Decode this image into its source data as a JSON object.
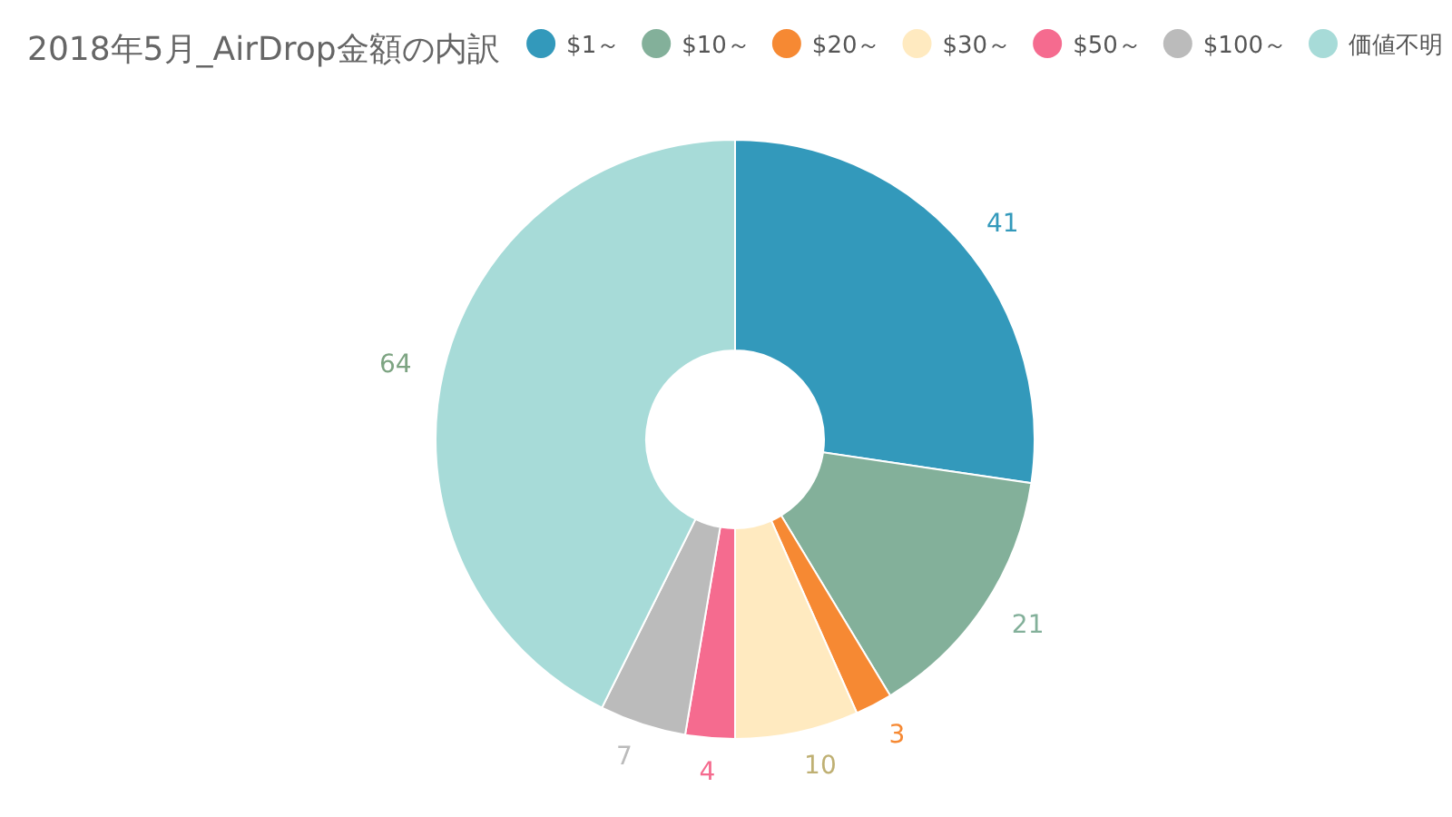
{
  "chart_data": {
    "type": "donut",
    "title": "2018年5月_AirDrop金額の内訳",
    "categories": [
      "$1～",
      "$10～",
      "$20～",
      "$30～",
      "$50～",
      "$100～",
      "価値不明"
    ],
    "values": [
      41,
      21,
      3,
      10,
      4,
      7,
      64
    ],
    "colors": [
      "#3399bb",
      "#83b09a",
      "#f68933",
      "#ffeac0",
      "#f56b8f",
      "#bbbbbb",
      "#a7dbd8"
    ],
    "data_labels": true,
    "legend": "top right"
  }
}
